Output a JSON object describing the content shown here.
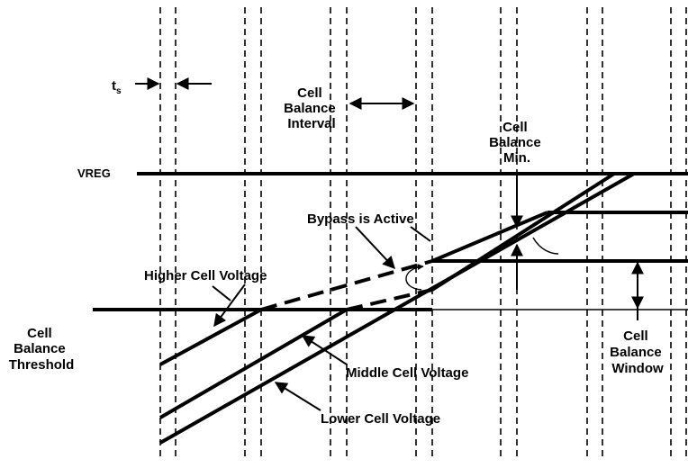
{
  "labels": {
    "ts_main": "t",
    "ts_sub": "s",
    "cell_balance_interval": [
      "Cell",
      "Balance",
      "Interval"
    ],
    "cell_balance_min": [
      "Cell",
      "Balance",
      "Min."
    ],
    "vreg": "VREG",
    "bypass_active": "Bypass is Active",
    "higher_cell_voltage": "Higher Cell Voltage",
    "middle_cell_voltage": "Middle Cell Voltage",
    "lower_cell_voltage": "Lower Cell Voltage",
    "cell_balance_threshold": [
      "Cell",
      "Balance",
      "Threshold"
    ],
    "cell_balance_window": [
      "Cell",
      "Balance",
      "Window"
    ]
  }
}
